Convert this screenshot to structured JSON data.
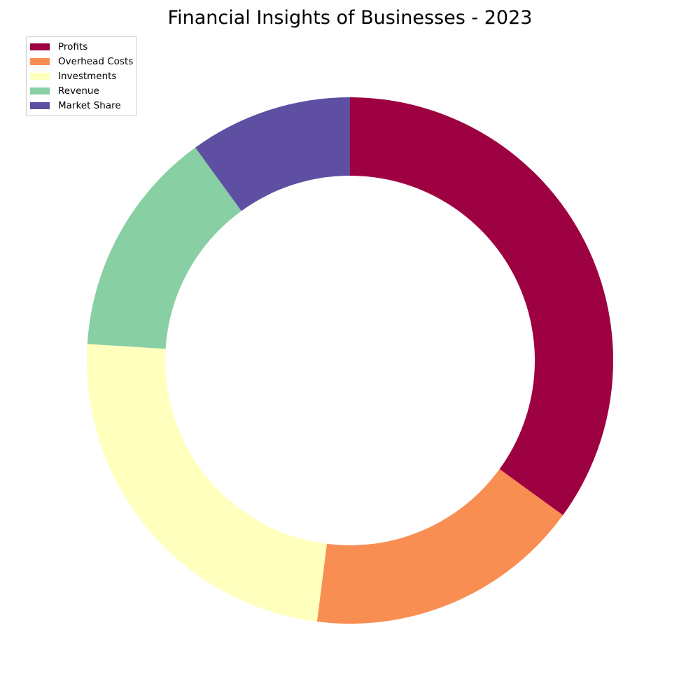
{
  "chart_data": {
    "type": "pie",
    "variant": "donut",
    "title": "Financial Insights of Businesses - 2023",
    "categories": [
      "Profits",
      "Overhead Costs",
      "Investments",
      "Revenue",
      "Market Share"
    ],
    "values": [
      35,
      17,
      24,
      14,
      10
    ],
    "colors": [
      "#9e0142",
      "#f98e52",
      "#ffffbe",
      "#88cfa4",
      "#5e4fa2"
    ],
    "start_angle": 90,
    "direction": "clockwise",
    "legend_position": "top-left"
  }
}
